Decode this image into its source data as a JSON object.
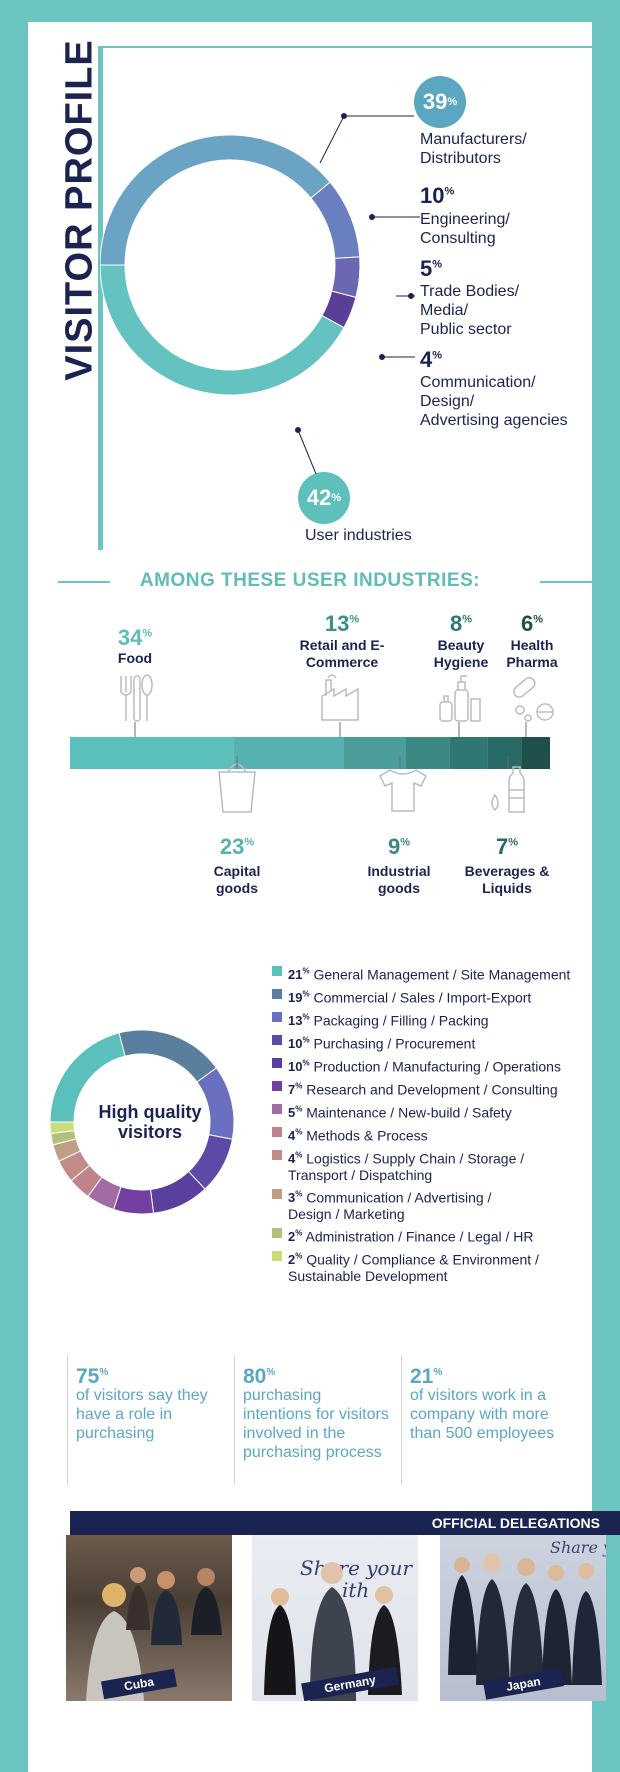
{
  "title": "VISITOR PROFILE",
  "profile": {
    "segments": [
      {
        "pct": "39",
        "label": [
          "Manufacturers/",
          "Distributors"
        ],
        "color": "#6aa3c4",
        "value": 39
      },
      {
        "pct": "10",
        "label": [
          "Engineering/",
          "Consulting"
        ],
        "color": "#6a7fc0",
        "value": 10
      },
      {
        "pct": "5",
        "label": [
          "Trade Bodies/",
          "Media/",
          "Public sector"
        ],
        "color": "#6a67b3",
        "value": 5
      },
      {
        "pct": "4",
        "label": [
          "Communication/",
          "Design/",
          "Advertising agencies"
        ],
        "color": "#5a3e97",
        "value": 4
      },
      {
        "pct": "42",
        "label": [
          "User industries"
        ],
        "color": "#64c3c0",
        "value": 42
      }
    ],
    "pct_sign": "%"
  },
  "industries": {
    "heading": "AMONG THESE USER INDUSTRIES:",
    "items": [
      {
        "pct": "34",
        "label": "Food",
        "color": "#5bbfbc",
        "value": 34
      },
      {
        "pct": "23",
        "label": "Capital goods",
        "color": "#57b1ae",
        "value": 23
      },
      {
        "pct": "13",
        "label": "Retail and E-Commerce",
        "color": "#4a9d99",
        "value": 13
      },
      {
        "pct": "9",
        "label": "Industrial goods",
        "color": "#3c8984",
        "value": 9
      },
      {
        "pct": "8",
        "label": "Beauty Hygiene",
        "color": "#2f7773",
        "value": 8
      },
      {
        "pct": "7",
        "label": "Beverages & Liquids",
        "color": "#296a66",
        "value": 7
      },
      {
        "pct": "6",
        "label": "Health Pharma",
        "color": "#1e4f4b",
        "value": 6
      }
    ]
  },
  "functions": {
    "center_label": "High quality visitors",
    "items": [
      {
        "pct": "21",
        "text": "General Management / Site Management",
        "color": "#5bbfbc",
        "value": 21
      },
      {
        "pct": "19",
        "text": "Commercial / Sales / Import-Export",
        "color": "#5a7e9e",
        "value": 19
      },
      {
        "pct": "13",
        "text": "Packaging / Filling / Packing",
        "color": "#6a6fbf",
        "value": 13
      },
      {
        "pct": "10",
        "text": "Purchasing / Procurement",
        "color": "#5c4aa6",
        "value": 10
      },
      {
        "pct": "10",
        "text": "Production / Manufacturing / Operations",
        "color": "#5a3f9e",
        "value": 10
      },
      {
        "pct": "7",
        "text": "Research and Development / Consulting",
        "color": "#733fa0",
        "value": 7
      },
      {
        "pct": "5",
        "text": "Maintenance / New-build / Safety",
        "color": "#a26ba4",
        "value": 5
      },
      {
        "pct": "4",
        "text": "Methods & Process",
        "color": "#c0838b",
        "value": 4
      },
      {
        "pct": "4",
        "text": "Logistics / Supply Chain / Storage / Transport / Dispatching",
        "color": "#c18c88",
        "value": 4
      },
      {
        "pct": "3",
        "text": "Communication / Advertising / Design / Marketing",
        "color": "#bda087",
        "value": 3
      },
      {
        "pct": "2",
        "text": "Administration / Finance / Legal / HR",
        "color": "#b1c07a",
        "value": 2
      },
      {
        "pct": "2",
        "text": "Quality / Compliance & Environment / Sustainable Development",
        "color": "#c8dd7a",
        "value": 2
      }
    ]
  },
  "stats": [
    {
      "num": "75",
      "text": "of visitors say they have a role in purchasing"
    },
    {
      "num": "80",
      "text": "purchasing intentions for visitors involved in the purchasing process"
    },
    {
      "num": "21",
      "text": "of visitors work in a company with more than 500 employees"
    }
  ],
  "delegations": {
    "title": "OFFICIAL DELEGATIONS",
    "countries": [
      "Cuba",
      "Germany",
      "Japan"
    ]
  }
}
